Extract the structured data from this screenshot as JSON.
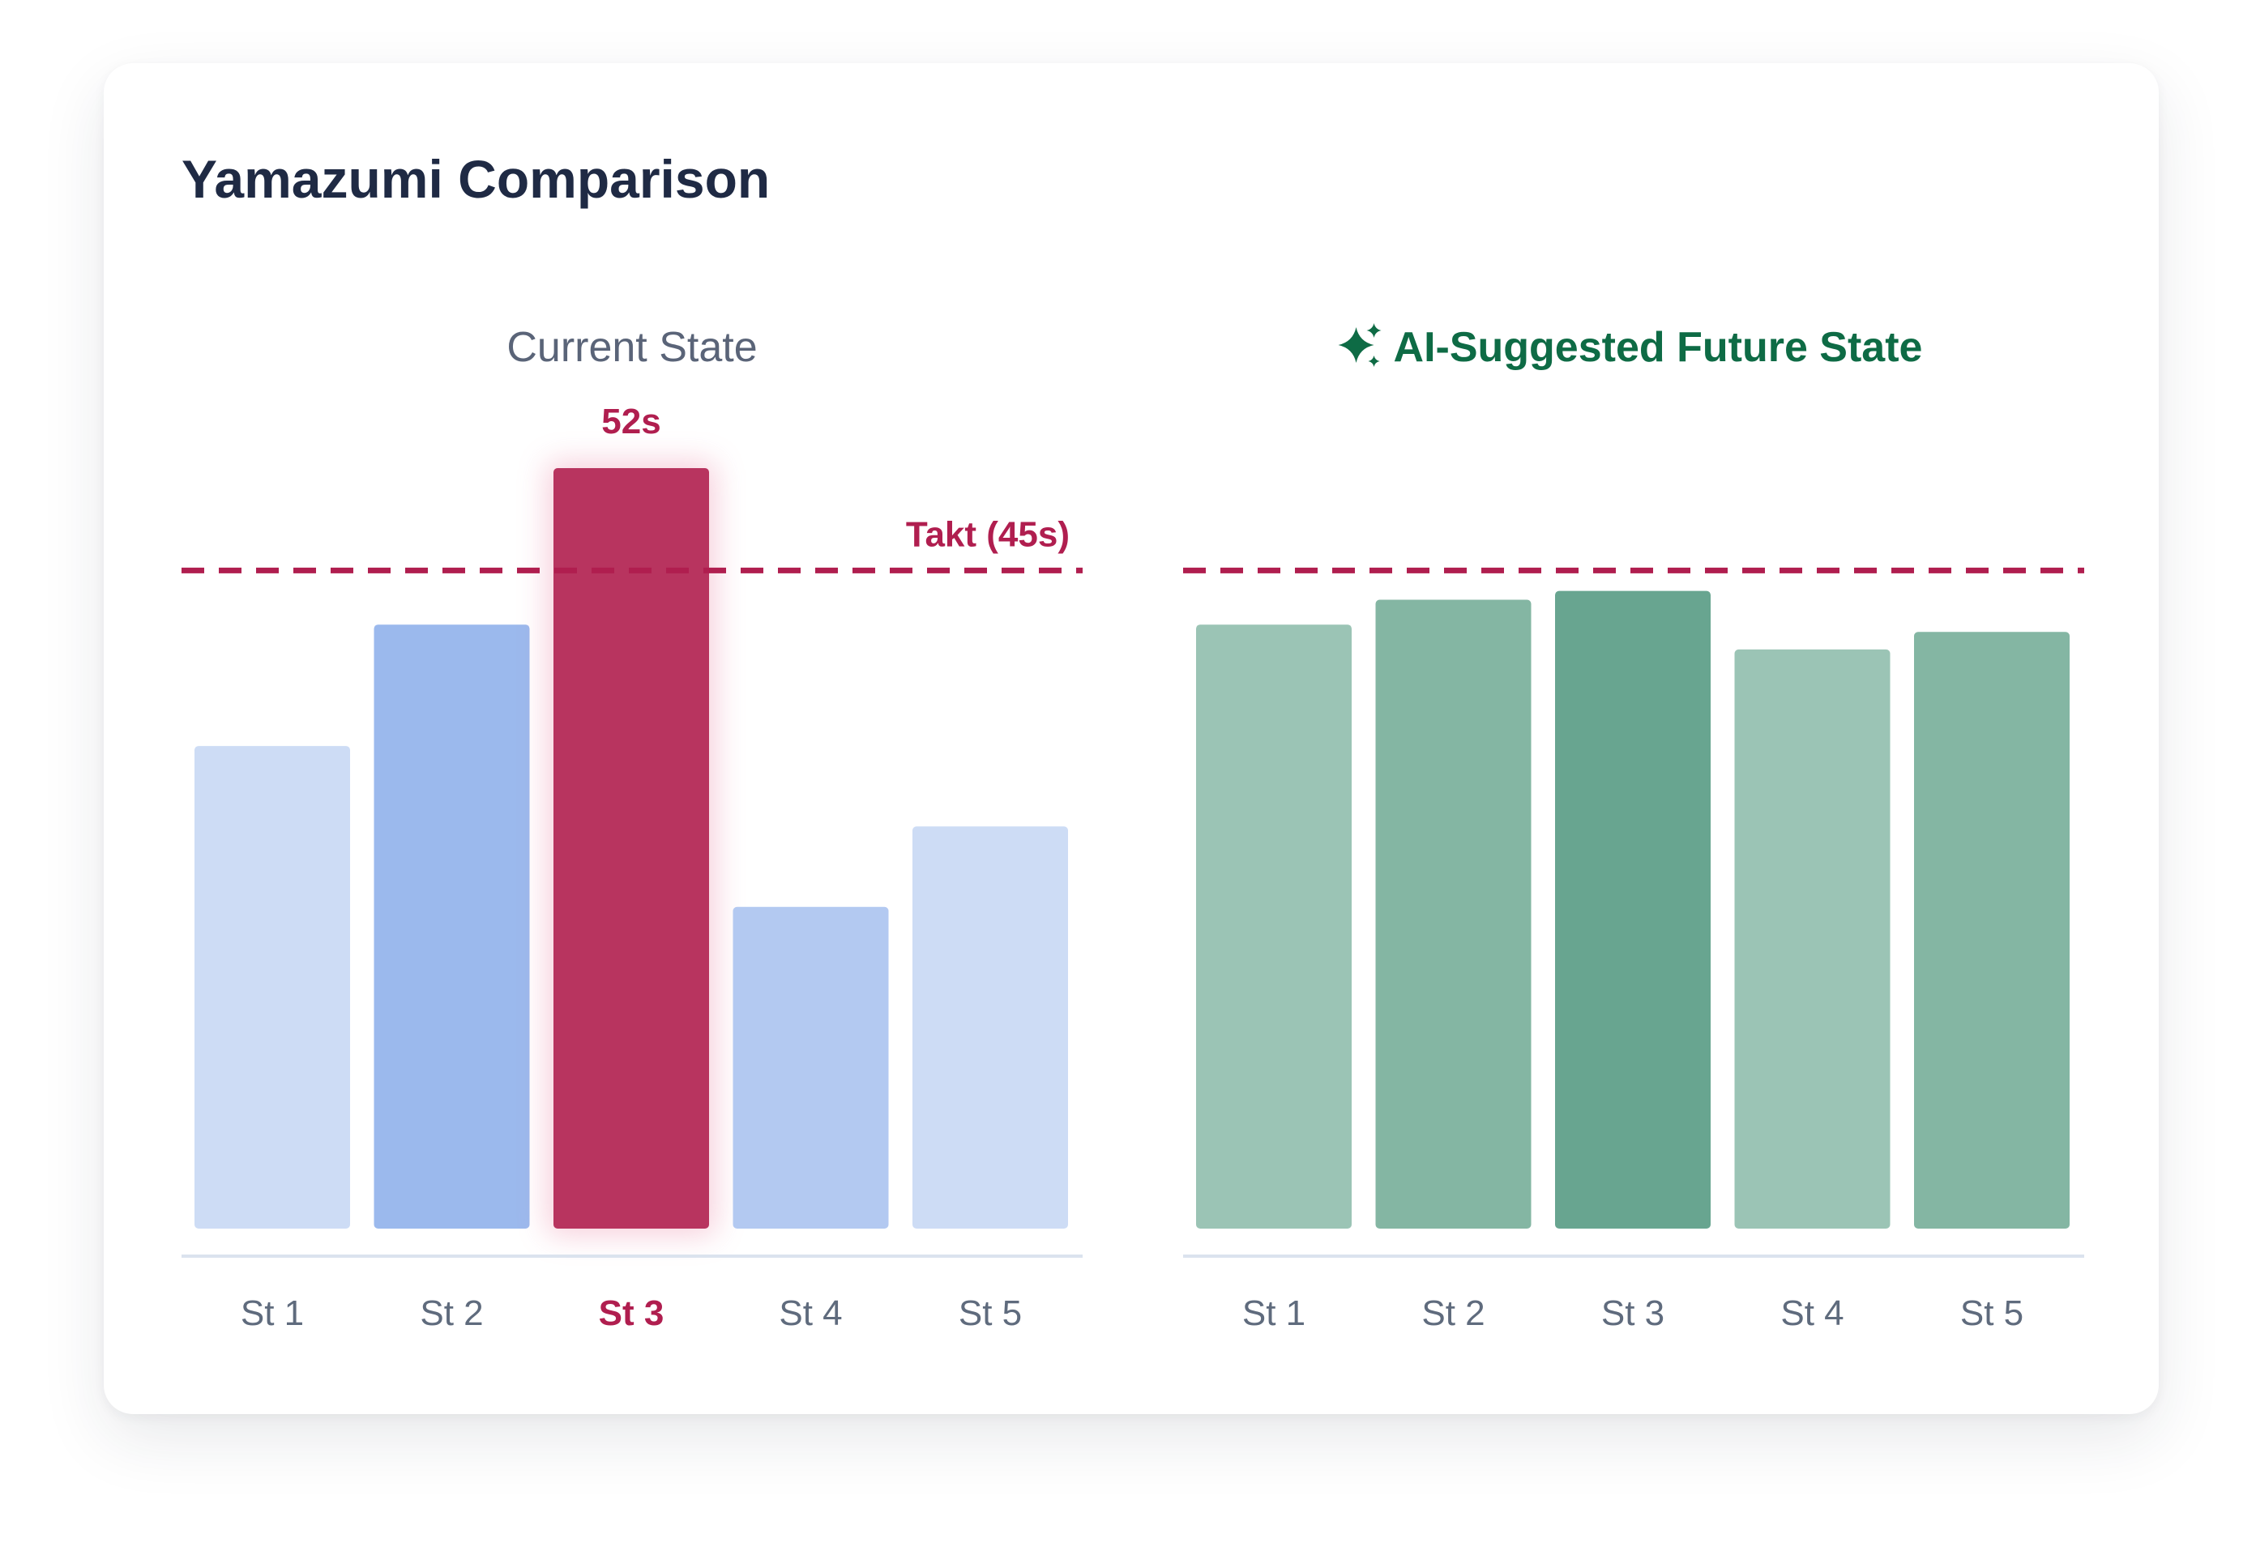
{
  "title": "Yamazumi Comparison",
  "chart_data": [
    {
      "type": "bar",
      "title": "Current State",
      "categories": [
        "St 1",
        "St 2",
        "St 3",
        "St 4",
        "St 5"
      ],
      "values": [
        33,
        41.3,
        52,
        22,
        27.5
      ],
      "highlight": {
        "index": 2,
        "label": "52s"
      },
      "takt": {
        "value": 45,
        "label": "Takt (45s)"
      },
      "ylim": [
        0,
        52
      ],
      "grid": false,
      "colors": [
        "#cddcf5",
        "#9bb9ed",
        "#b8345f",
        "#b3c9f1",
        "#cddcf5"
      ],
      "tick_colors": [
        "#5f6b7d",
        "#5f6b7d",
        "#b01e4f",
        "#5f6b7d",
        "#5f6b7d"
      ]
    },
    {
      "type": "bar",
      "title": "AI-Suggested Future State",
      "title_icon": "sparkle-icon",
      "categories": [
        "St 1",
        "St 2",
        "St 3",
        "St 4",
        "St 5"
      ],
      "values": [
        41.3,
        43,
        43.6,
        39.6,
        40.8
      ],
      "takt": {
        "value": 45,
        "label": ""
      },
      "ylim": [
        0,
        52
      ],
      "grid": false,
      "colors": [
        "#9bc4b5",
        "#84b6a3",
        "#68a590",
        "#9bc4b5",
        "#84b6a3"
      ],
      "tick_colors": [
        "#5f6b7d",
        "#5f6b7d",
        "#5f6b7d",
        "#5f6b7d",
        "#5f6b7d"
      ]
    }
  ],
  "colors": {
    "current_title": "#5a6478",
    "future_title": "#0e6b45",
    "takt_line": "#b01e4f",
    "axis_line": "#dbe3ee"
  }
}
